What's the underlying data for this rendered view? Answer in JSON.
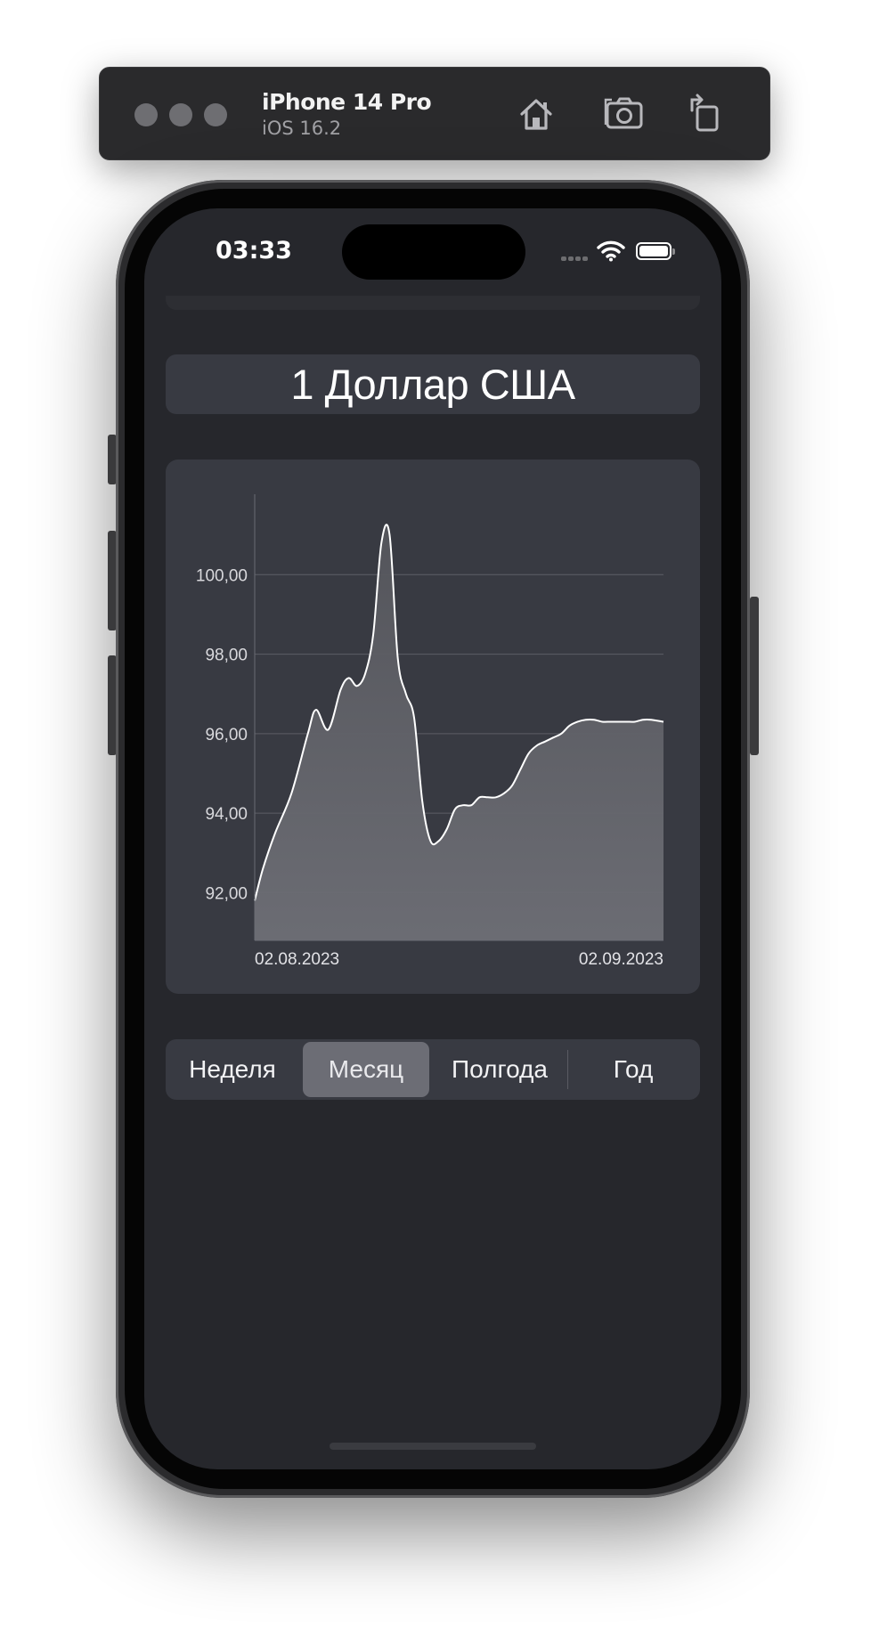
{
  "simulator": {
    "device_name": "iPhone 14 Pro",
    "os_version": "iOS 16.2",
    "buttons": [
      "home-icon",
      "screenshot-icon",
      "rotate-icon"
    ]
  },
  "status_bar": {
    "time": "03:33"
  },
  "header": {
    "title": "1 Доллар США"
  },
  "chart_data": {
    "type": "area",
    "x_start_label": "02.08.2023",
    "x_end_label": "02.09.2023",
    "y_tick_labels": [
      "100,00",
      "98,00",
      "96,00",
      "94,00",
      "92,00"
    ],
    "y_ticks": [
      100,
      98,
      96,
      94,
      92
    ],
    "ylim": [
      90.8,
      102
    ],
    "grid": "horizontal",
    "x": [
      0,
      0.02,
      0.05,
      0.09,
      0.13,
      0.15,
      0.18,
      0.21,
      0.23,
      0.25,
      0.27,
      0.29,
      0.31,
      0.33,
      0.35,
      0.37,
      0.39,
      0.41,
      0.43,
      0.45,
      0.47,
      0.49,
      0.51,
      0.53,
      0.55,
      0.57,
      0.59,
      0.61,
      0.63,
      0.65,
      0.67,
      0.69,
      0.71,
      0.73,
      0.75,
      0.77,
      0.79,
      0.81,
      0.83,
      0.85,
      0.87,
      0.89,
      0.91,
      0.93,
      0.95,
      0.97,
      1.0
    ],
    "values": [
      91.8,
      92.6,
      93.5,
      94.5,
      96.0,
      96.6,
      96.1,
      97.1,
      97.4,
      97.2,
      97.5,
      98.5,
      100.8,
      101.0,
      97.9,
      97.0,
      96.4,
      94.3,
      93.3,
      93.3,
      93.6,
      94.1,
      94.2,
      94.2,
      94.4,
      94.4,
      94.4,
      94.5,
      94.7,
      95.1,
      95.5,
      95.7,
      95.8,
      95.9,
      96.0,
      96.2,
      96.3,
      96.35,
      96.35,
      96.3,
      96.3,
      96.3,
      96.3,
      96.3,
      96.35,
      96.35,
      96.3
    ],
    "line_color": "#ffffff",
    "fill_color": "#6a6b72"
  },
  "segmented_control": {
    "items": [
      "Неделя",
      "Месяц",
      "Полгода",
      "Год"
    ],
    "selected": "Месяц"
  },
  "colors": {
    "screen_background": "#26272c",
    "card_background": "#383a42",
    "selected_segment": "#6c6d75"
  }
}
